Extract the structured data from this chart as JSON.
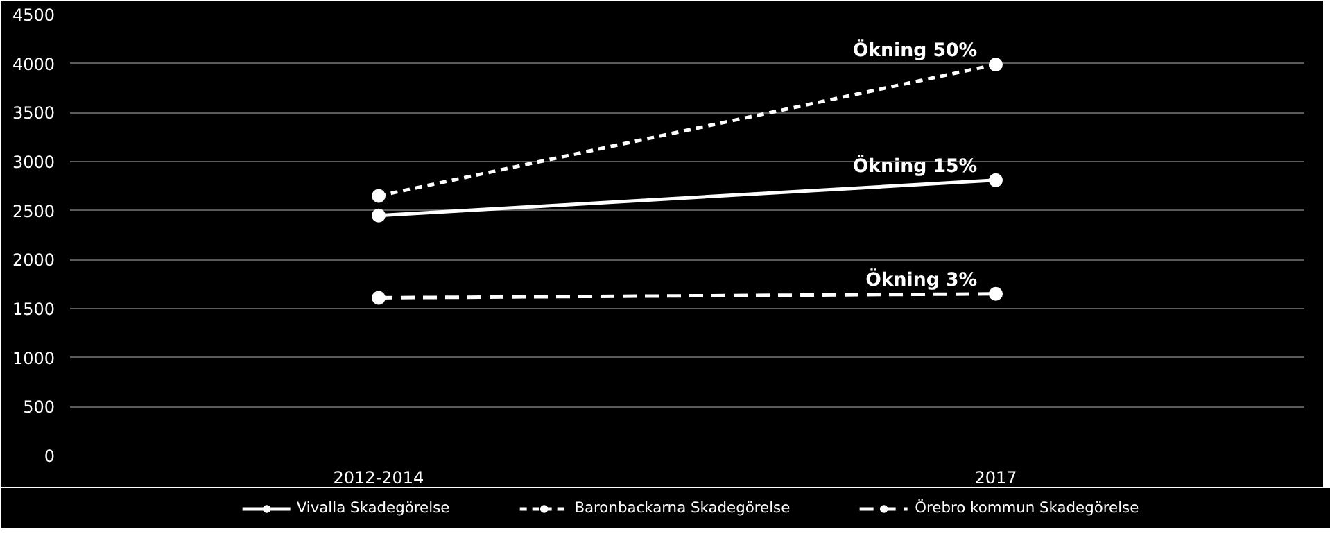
{
  "chart_data": {
    "type": "line",
    "categories": [
      "2012-2014",
      "2017"
    ],
    "series": [
      {
        "name": "Vivalla Skadegörelse",
        "color": "#ffffff",
        "values": [
          2450,
          2810
        ],
        "line_style": "solid"
      },
      {
        "name": "Baronbackarna Skadegörelse",
        "color": "#ffffff",
        "values": [
          2650,
          3990
        ],
        "line_style": "dotted"
      },
      {
        "name": "Örebro kommun Skadegörelse",
        "color": "#ffffff",
        "values": [
          1610,
          1650
        ],
        "line_style": "dashed"
      }
    ],
    "ylim": [
      0,
      4500
    ],
    "yticks": [
      0,
      500,
      1000,
      1500,
      2000,
      2500,
      3000,
      3500,
      4000,
      4500
    ],
    "grid": "y",
    "legend": "bottom",
    "marker": "circle",
    "annotations": [
      {
        "text": "Ökning 50%",
        "x": "2017",
        "y": 3990
      },
      {
        "text": "Ökning 15%",
        "x": "2017",
        "y": 2810
      },
      {
        "text": "Ökning 3%",
        "x": "2017",
        "y": 1650
      }
    ]
  }
}
